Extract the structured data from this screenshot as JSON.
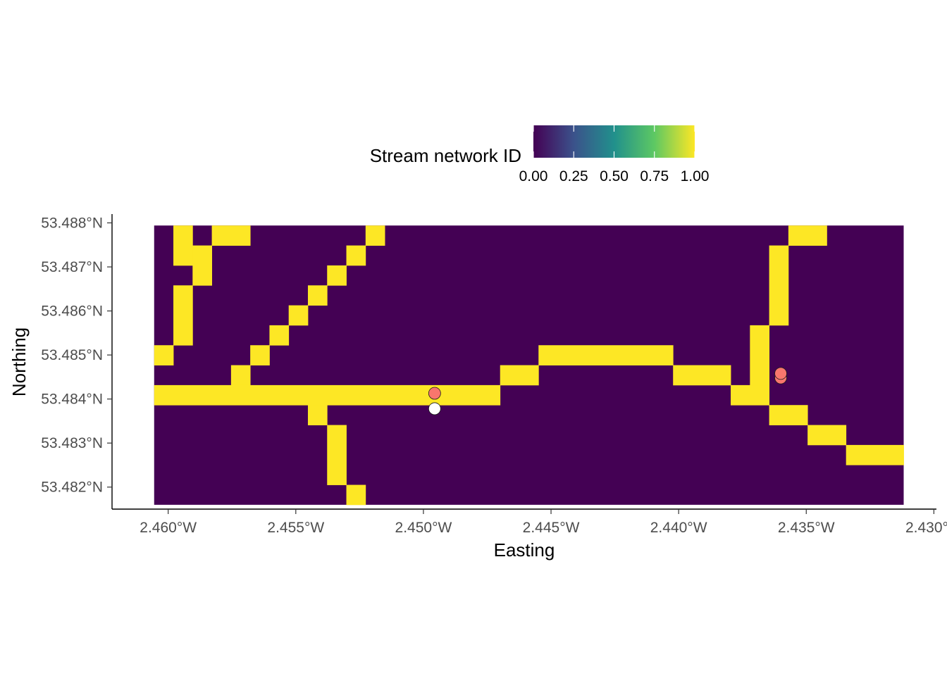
{
  "chart_data": {
    "type": "heatmap",
    "title": "",
    "xlabel": "Easting",
    "ylabel": "Northing",
    "xlim": [
      -2.4622,
      -2.4299
    ],
    "ylim": [
      53.4815,
      53.4882
    ],
    "x_ticks": [
      -2.46,
      -2.455,
      -2.45,
      -2.445,
      -2.44,
      -2.435,
      -2.43
    ],
    "x_tick_labels": [
      "2.460°W",
      "2.455°W",
      "2.450°W",
      "2.445°W",
      "2.440°W",
      "2.435°W",
      "2.430°W"
    ],
    "y_ticks": [
      53.482,
      53.483,
      53.484,
      53.485,
      53.486,
      53.487,
      53.488
    ],
    "y_tick_labels": [
      "53.482°N",
      "53.483°N",
      "53.484°N",
      "53.485°N",
      "53.486°N",
      "53.487°N",
      "53.488°N"
    ],
    "grid": false,
    "legend": {
      "title": "Stream network ID",
      "position": "top",
      "ticks": [
        0,
        0.25,
        0.5,
        0.75,
        1
      ],
      "tick_labels": [
        "0.00",
        "0.25",
        "0.50",
        "0.75",
        "1.00"
      ],
      "colors": [
        "#440154",
        "#3B528B",
        "#21908C",
        "#5DC863",
        "#FDE725"
      ]
    },
    "raster": {
      "x_min": -2.46055,
      "y_max": 53.48794,
      "cell_width": 0.000753,
      "cell_height": 0.000453,
      "n_cols": 39,
      "n_rows": 14,
      "low_color": "#440154",
      "high_color": "#FDE725",
      "value_range": [
        0,
        1
      ],
      "cells": [
        {
          "value": 1,
          "col": 1,
          "row": 0,
          "w": 1,
          "h": 2
        },
        {
          "value": 1,
          "col": 2,
          "row": 1,
          "w": 1,
          "h": 2
        },
        {
          "value": 1,
          "col": 3,
          "row": 0,
          "w": 2,
          "h": 1
        },
        {
          "value": 1,
          "col": 11,
          "row": 0,
          "w": 1,
          "h": 1
        },
        {
          "value": 1,
          "col": 10,
          "row": 1,
          "w": 1,
          "h": 1
        },
        {
          "value": 1,
          "col": 9,
          "row": 2,
          "w": 1,
          "h": 1
        },
        {
          "value": 1,
          "col": 8,
          "row": 3,
          "w": 1,
          "h": 1
        },
        {
          "value": 1,
          "col": 7,
          "row": 4,
          "w": 1,
          "h": 1
        },
        {
          "value": 1,
          "col": 6,
          "row": 5,
          "w": 1,
          "h": 1
        },
        {
          "value": 1,
          "col": 5,
          "row": 6,
          "w": 1,
          "h": 1
        },
        {
          "value": 1,
          "col": 4,
          "row": 7,
          "w": 1,
          "h": 1
        },
        {
          "value": 1,
          "col": 1,
          "row": 3,
          "w": 1,
          "h": 3
        },
        {
          "value": 1,
          "col": 0,
          "row": 6,
          "w": 1,
          "h": 1
        },
        {
          "value": 1,
          "col": 0,
          "row": 8,
          "w": 18,
          "h": 1
        },
        {
          "value": 1,
          "col": 18,
          "row": 7,
          "w": 2,
          "h": 1
        },
        {
          "value": 1,
          "col": 20,
          "row": 6,
          "w": 7,
          "h": 1
        },
        {
          "value": 1,
          "col": 27,
          "row": 7,
          "w": 3,
          "h": 1
        },
        {
          "value": 1,
          "col": 30,
          "row": 8,
          "w": 2,
          "h": 1
        },
        {
          "value": 1,
          "col": 32,
          "row": 9,
          "w": 2,
          "h": 1
        },
        {
          "value": 1,
          "col": 34,
          "row": 10,
          "w": 2,
          "h": 1
        },
        {
          "value": 1,
          "col": 36,
          "row": 11,
          "w": 3,
          "h": 1
        },
        {
          "value": 1,
          "col": 31,
          "row": 5,
          "w": 1,
          "h": 3
        },
        {
          "value": 1,
          "col": 32,
          "row": 1,
          "w": 1,
          "h": 4
        },
        {
          "value": 1,
          "col": 33,
          "row": 0,
          "w": 2,
          "h": 1
        },
        {
          "value": 1,
          "col": 8,
          "row": 9,
          "w": 1,
          "h": 1
        },
        {
          "value": 1,
          "col": 9,
          "row": 10,
          "w": 1,
          "h": 3
        },
        {
          "value": 1,
          "col": 10,
          "row": 13,
          "w": 1,
          "h": 1
        }
      ]
    },
    "points": [
      {
        "x": -2.44956,
        "y": 53.48413,
        "color": "#F8766D"
      },
      {
        "x": -2.44956,
        "y": 53.48378,
        "color": "#FFFFFF"
      },
      {
        "x": -2.436,
        "y": 53.48448,
        "color": "#F8766D"
      },
      {
        "x": -2.436,
        "y": 53.48458,
        "color": "#F8766D"
      }
    ]
  }
}
